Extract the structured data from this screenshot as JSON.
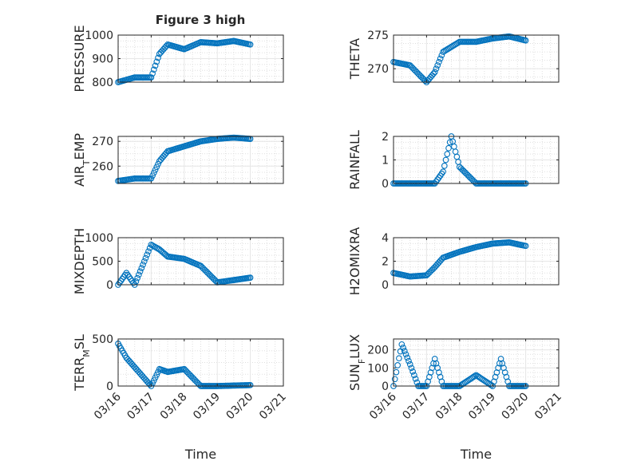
{
  "title": "Figure 3 high",
  "chart_data": [
    {
      "type": "scatter",
      "ylabel": "PRESSURE",
      "ylim": [
        800,
        1000
      ],
      "yticks": [
        800,
        900,
        1000
      ],
      "x": [
        "03/16",
        "03/16 12:00",
        "03/17",
        "03/17 06:00",
        "03/17 12:00",
        "03/18",
        "03/18 12:00",
        "03/19",
        "03/19 12:00",
        "03/20"
      ],
      "y": [
        800,
        820,
        820,
        920,
        960,
        940,
        970,
        965,
        975,
        960
      ]
    },
    {
      "type": "scatter",
      "ylabel": "THETA",
      "ylim": [
        268,
        275
      ],
      "yticks": [
        270,
        275
      ],
      "x": [
        "03/16",
        "03/16 12:00",
        "03/17",
        "03/17 06:00",
        "03/17 12:00",
        "03/18",
        "03/18 12:00",
        "03/19",
        "03/19 12:00",
        "03/20"
      ],
      "y": [
        271,
        270.5,
        268,
        269.5,
        272.5,
        274,
        274,
        274.5,
        274.8,
        274.2
      ]
    },
    {
      "type": "scatter",
      "ylabel": "AIR_TEMP",
      "ylim": [
        253,
        272
      ],
      "yticks": [
        260,
        270
      ],
      "x": [
        "03/16",
        "03/16 12:00",
        "03/17",
        "03/17 06:00",
        "03/17 12:00",
        "03/18",
        "03/18 12:00",
        "03/19",
        "03/19 12:00",
        "03/20"
      ],
      "y": [
        254,
        255,
        255,
        262,
        266,
        268,
        270,
        271,
        271.5,
        271
      ]
    },
    {
      "type": "scatter",
      "ylabel": "RAINFALL",
      "ylim": [
        0,
        2
      ],
      "yticks": [
        0,
        1,
        2
      ],
      "x": [
        "03/16",
        "03/16 12:00",
        "03/17",
        "03/17 06:00",
        "03/17 12:00",
        "03/17 18:00",
        "03/18",
        "03/18 12:00",
        "03/19",
        "03/20"
      ],
      "y": [
        0,
        0,
        0,
        0,
        0.5,
        2,
        0.7,
        0,
        0,
        0
      ]
    },
    {
      "type": "scatter",
      "ylabel": "MIXDEPTH",
      "ylim": [
        0,
        1000
      ],
      "yticks": [
        0,
        500,
        1000
      ],
      "x": [
        "03/16",
        "03/16 06:00",
        "03/16 12:00",
        "03/17",
        "03/17 06:00",
        "03/17 12:00",
        "03/18",
        "03/18 12:00",
        "03/19",
        "03/20"
      ],
      "y": [
        0,
        250,
        0,
        850,
        750,
        600,
        550,
        400,
        50,
        150
      ]
    },
    {
      "type": "scatter",
      "ylabel": "H2OMIXRA",
      "ylim": [
        0,
        4
      ],
      "yticks": [
        0,
        2,
        4
      ],
      "x": [
        "03/16",
        "03/16 12:00",
        "03/17",
        "03/17 06:00",
        "03/17 12:00",
        "03/18",
        "03/18 12:00",
        "03/19",
        "03/19 12:00",
        "03/20"
      ],
      "y": [
        1,
        0.7,
        0.8,
        1.5,
        2.3,
        2.8,
        3.2,
        3.5,
        3.6,
        3.3
      ]
    },
    {
      "type": "scatter",
      "ylabel": "TERR_MSL",
      "ylim": [
        0,
        500
      ],
      "yticks": [
        0,
        500
      ],
      "x": [
        "03/16",
        "03/16 06:00",
        "03/16 12:00",
        "03/17",
        "03/17 06:00",
        "03/17 12:00",
        "03/18",
        "03/18 12:00",
        "03/19",
        "03/20"
      ],
      "y": [
        450,
        300,
        200,
        0,
        180,
        150,
        180,
        0,
        0,
        10
      ]
    },
    {
      "type": "scatter",
      "ylabel": "SUN_FLUX",
      "ylim": [
        0,
        260
      ],
      "yticks": [
        0,
        100,
        200
      ],
      "x": [
        "03/16",
        "03/16 06:00",
        "03/16 12:00",
        "03/16 18:00",
        "03/17",
        "03/17 06:00",
        "03/17 12:00",
        "03/18",
        "03/18 12:00",
        "03/19",
        "03/19 06:00",
        "03/19 12:00",
        "03/20"
      ],
      "y": [
        0,
        230,
        120,
        0,
        0,
        150,
        0,
        0,
        60,
        0,
        150,
        0,
        0
      ]
    }
  ],
  "xticks": [
    "03/16",
    "03/17",
    "03/18",
    "03/19",
    "03/20",
    "03/21"
  ],
  "xlabel": "Time",
  "colors": {
    "marker": "#0072BD",
    "axis": "#262626",
    "grid": "#dfdfdf"
  }
}
